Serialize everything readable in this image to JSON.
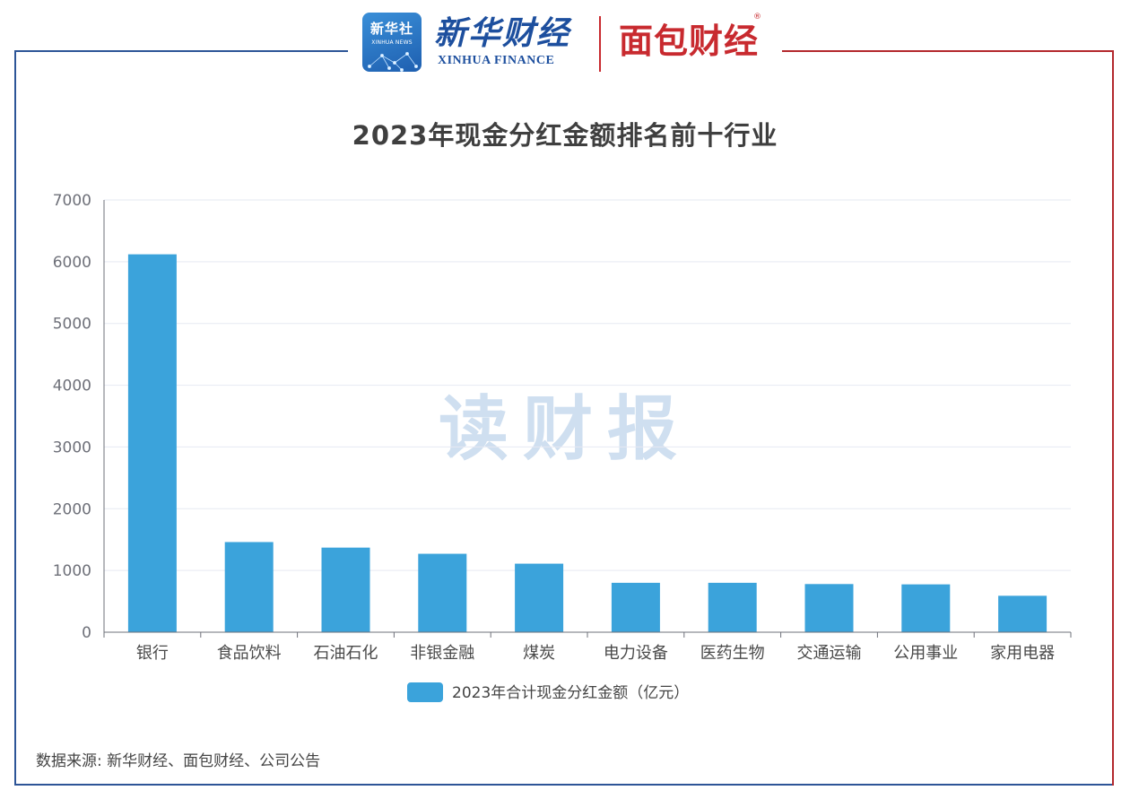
{
  "header": {
    "xinhua_badge_cn": "新华社",
    "xinhua_badge_en": "XINHUA NEWS",
    "xinhua_finance_cn": "新华财经",
    "xinhua_finance_en": "XINHUA FINANCE",
    "mianbao_cn": "面包财经",
    "mianbao_reg": "®"
  },
  "watermark": "读财报",
  "source": "数据来源: 新华财经、面包财经、公司公告",
  "colors": {
    "bar": "#3ba3db",
    "frame_left": "#2d5597",
    "frame_right": "#b3282d",
    "grid": "#e6e9f2",
    "axis": "#6e7079"
  },
  "chart_data": {
    "type": "bar",
    "title": "2023年现金分红金额排名前十行业",
    "xlabel": "",
    "ylabel": "",
    "ylim": [
      0,
      7000
    ],
    "yticks": [
      0,
      1000,
      2000,
      3000,
      4000,
      5000,
      6000,
      7000
    ],
    "categories": [
      "银行",
      "食品饮料",
      "石油石化",
      "非银金融",
      "煤炭",
      "电力设备",
      "医药生物",
      "交通运输",
      "公用事业",
      "家用电器"
    ],
    "series": [
      {
        "name": "2023年合计现金分红金额（亿元）",
        "values": [
          6120,
          1460,
          1370,
          1270,
          1110,
          800,
          800,
          780,
          775,
          590
        ]
      }
    ],
    "grid": true,
    "legend": "bottom-center"
  }
}
